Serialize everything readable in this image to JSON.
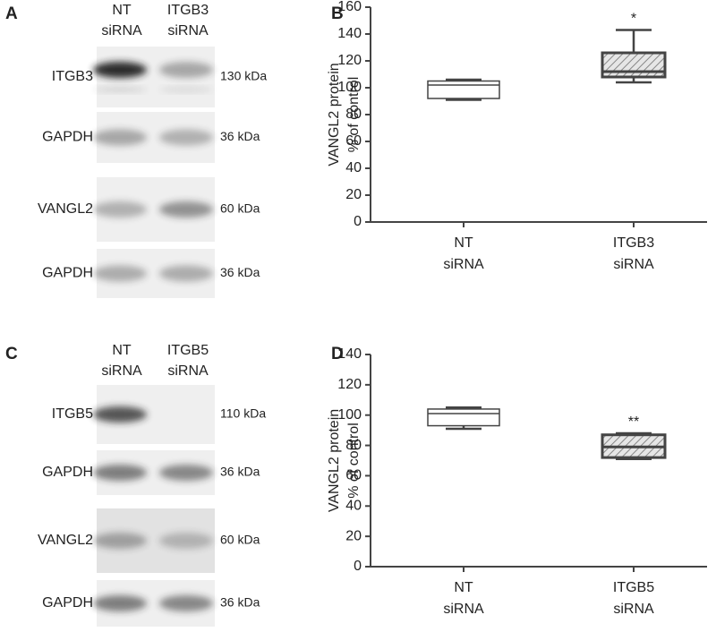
{
  "panel_labels": [
    "A",
    "B",
    "C",
    "D"
  ],
  "blots": [
    {
      "lanes": [
        [
          "NT",
          "siRNA"
        ],
        [
          "ITGB3",
          "siRNA"
        ]
      ],
      "rows": [
        {
          "protein": "ITGB3",
          "size": "130 kDa"
        },
        {
          "protein": "GAPDH",
          "size": "36 kDa"
        },
        {
          "protein": "VANGL2",
          "size": "60 kDa"
        },
        {
          "protein": "GAPDH",
          "size": "36 kDa"
        }
      ]
    },
    {
      "lanes": [
        [
          "NT",
          "siRNA"
        ],
        [
          "ITGB5",
          "siRNA"
        ]
      ],
      "rows": [
        {
          "protein": "ITGB5",
          "size": "110 kDa"
        },
        {
          "protein": "GAPDH",
          "size": "36 kDa"
        },
        {
          "protein": "VANGL2",
          "size": "60 kDa"
        },
        {
          "protein": "GAPDH",
          "size": "36 kDa"
        }
      ]
    }
  ],
  "chart_data": [
    {
      "type": "box",
      "ylabel": [
        "VANGL2 protein",
        "% of control"
      ],
      "categories": [
        [
          "NT",
          "siRNA"
        ],
        [
          "ITGB3",
          "siRNA"
        ]
      ],
      "values": [
        {
          "min": 91,
          "q1": 92,
          "median": 102,
          "q3": 105,
          "max": 106
        },
        {
          "min": 104,
          "q1": 108,
          "median": 112,
          "q3": 126,
          "max": 143
        }
      ],
      "annotations": [
        {
          "text": "*",
          "category": 1
        }
      ],
      "ylim": [
        0,
        160
      ],
      "yticks": [
        0,
        20,
        40,
        60,
        80,
        100,
        120,
        140,
        160
      ]
    },
    {
      "type": "box",
      "ylabel": [
        "VANGL2 protein",
        "% of control"
      ],
      "categories": [
        [
          "NT",
          "siRNA"
        ],
        [
          "ITGB5",
          "siRNA"
        ]
      ],
      "values": [
        {
          "min": 91,
          "q1": 93,
          "median": 101,
          "q3": 104,
          "max": 105
        },
        {
          "min": 71,
          "q1": 72,
          "median": 79,
          "q3": 87,
          "max": 88
        }
      ],
      "annotations": [
        {
          "text": "**",
          "category": 1
        }
      ],
      "ylim": [
        0,
        140
      ],
      "yticks": [
        0,
        20,
        40,
        60,
        80,
        100,
        120,
        140
      ]
    }
  ]
}
